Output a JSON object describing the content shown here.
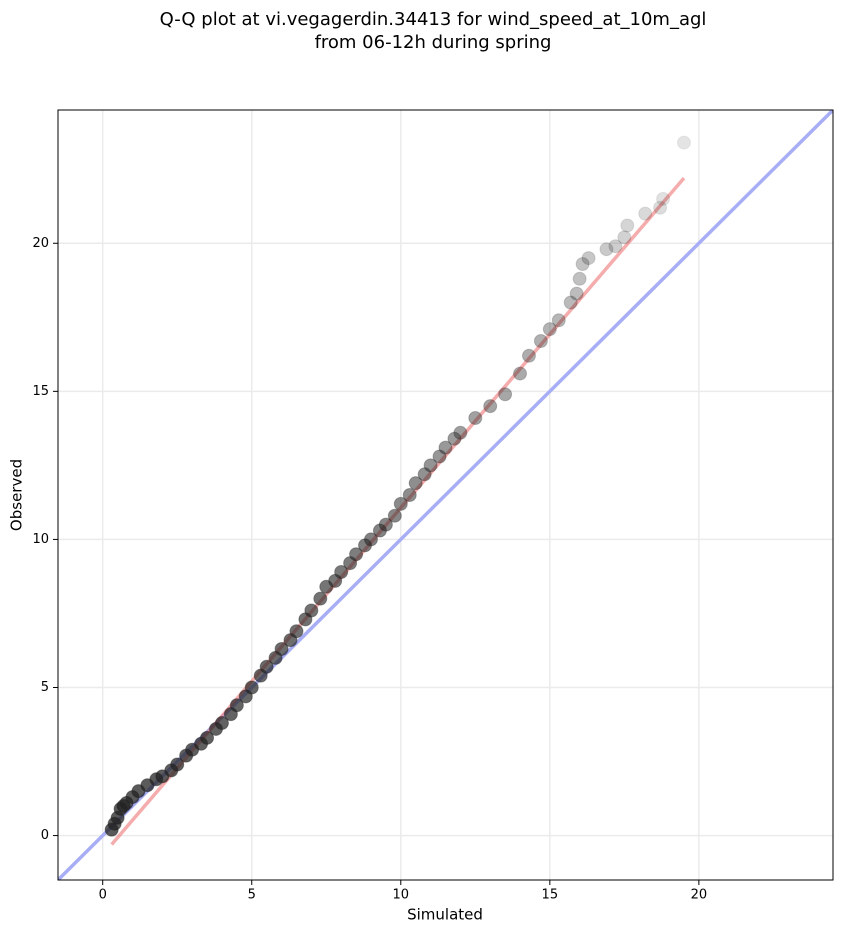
{
  "chart_data": {
    "type": "scatter",
    "title": "Q-Q plot at vi.vegagerdin.34413 for wind_speed_at_10m_agl",
    "subtitle": "from 06-12h during spring",
    "x_label": "Simulated",
    "y_label": "Observed",
    "xlim": [
      -1.5,
      24.5
    ],
    "ylim": [
      -1.5,
      24.5
    ],
    "xticks": [
      0,
      5,
      10,
      15,
      20
    ],
    "yticks": [
      0,
      5,
      10,
      15,
      20
    ],
    "grid": true,
    "series": [
      {
        "color": "#222222",
        "x": [
          0.3,
          0.4,
          0.5,
          0.6,
          0.7,
          0.8,
          1,
          1.2,
          1.5,
          1.8,
          2,
          2.3,
          2.5,
          2.8,
          3,
          3.3,
          3.5,
          3.8,
          4,
          4.3,
          4.5,
          4.8,
          5,
          5.3,
          5.5,
          5.8,
          6,
          6.3,
          6.5,
          6.8,
          7,
          7.3,
          7.5,
          7.8,
          8,
          8.3,
          8.5,
          8.8,
          9,
          9.3,
          9.5,
          9.8,
          10,
          10.3,
          10.5,
          10.8,
          11,
          11.3,
          11.5,
          11.8,
          12,
          12.5,
          13,
          13.5,
          14,
          14.3,
          14.7,
          15,
          15.3,
          15.7,
          15.9,
          16,
          16.1,
          16.3,
          16.9,
          17.2,
          17.5,
          17.6,
          18.2,
          18.7,
          18.8,
          19.5
        ],
        "y": [
          0.2,
          0.4,
          0.6,
          0.9,
          1.0,
          1.1,
          1.3,
          1.5,
          1.7,
          1.9,
          2.0,
          2.2,
          2.4,
          2.7,
          2.9,
          3.1,
          3.3,
          3.6,
          3.8,
          4.1,
          4.4,
          4.7,
          5.0,
          5.4,
          5.7,
          6.0,
          6.3,
          6.6,
          6.9,
          7.3,
          7.6,
          8.0,
          8.4,
          8.6,
          8.9,
          9.2,
          9.5,
          9.8,
          10.0,
          10.3,
          10.5,
          10.8,
          11.2,
          11.5,
          11.9,
          12.2,
          12.5,
          12.8,
          13.1,
          13.4,
          13.6,
          14.1,
          14.5,
          14.9,
          15.6,
          16.2,
          16.7,
          17.1,
          17.4,
          18.0,
          18.3,
          18.8,
          19.3,
          19.5,
          19.8,
          19.9,
          20.2,
          20.6,
          21.0,
          21.2,
          21.5,
          23.4
        ]
      }
    ],
    "fit_line": {
      "color": "#f08080",
      "x": [
        0.3,
        19.5
      ],
      "y": [
        -0.3,
        22.2
      ]
    },
    "reference_line": {
      "color": "#a8aef5"
    }
  }
}
